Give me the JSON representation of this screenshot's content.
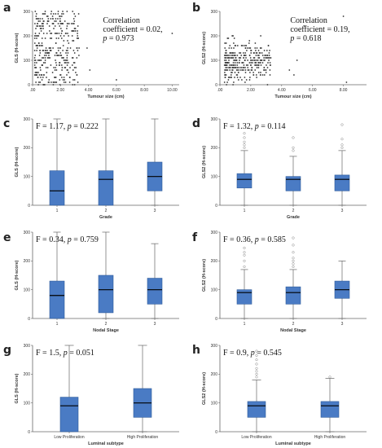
{
  "figure": {
    "colors": {
      "box": "#4a7bc4",
      "box_edge": "#2d5a9a",
      "axis": "#666666",
      "point": "#333333",
      "whisker": "#666666",
      "outlier": "#888888"
    }
  },
  "chart_data": [
    {
      "panel": "a",
      "type": "scatter",
      "xlabel": "Tumour size (cm)",
      "ylabel": "GLS (H-score)",
      "xlim": [
        0,
        10.5
      ],
      "ylim": [
        0,
        300
      ],
      "xticks": [
        ".00",
        "2.00",
        "4.00",
        "6.00",
        "8.00",
        "10.00"
      ],
      "annotation_lines": [
        "Correlation",
        "coefficient = 0.02,",
        "p = 0.973"
      ],
      "grid": false,
      "points_approx": "dense cluster for tumour size 0–3.5 cm spanning 0–300; isolated points near (6.0, 20) and (10.0, 210)"
    },
    {
      "panel": "b",
      "type": "scatter",
      "xlabel": "Tumour size (cm)",
      "ylabel": "GLS2 (H-score)",
      "xlim": [
        0,
        9.5
      ],
      "ylim": [
        0,
        300
      ],
      "xticks": [
        ".00",
        "2.00",
        "4.00",
        "6.00",
        "8.00"
      ],
      "annotation_lines": [
        "Correlation",
        "coefficient = 0.19,",
        "p = 0.618"
      ],
      "grid": false,
      "points_approx": "dense cluster for tumour size 0–3.5 cm, 0–200, concentrated around 100; isolated points near (5.5, 240) and (8.0, 280)"
    },
    {
      "panel": "c",
      "type": "box",
      "stat_text": "F = 1.17, p = 0.222",
      "xlabel": "Grade",
      "ylabel": "GLS (H-score)",
      "ylim": [
        0,
        300
      ],
      "yticks": [
        0,
        100,
        200,
        300
      ],
      "categories": [
        "1",
        "2",
        "3"
      ],
      "boxes": [
        {
          "min": 0,
          "q1": 0,
          "median": 50,
          "q3": 120,
          "max": 300,
          "outliers": []
        },
        {
          "min": 0,
          "q1": 0,
          "median": 90,
          "q3": 120,
          "max": 300,
          "outliers": []
        },
        {
          "min": 0,
          "q1": 50,
          "median": 100,
          "q3": 150,
          "max": 300,
          "outliers": []
        }
      ]
    },
    {
      "panel": "d",
      "type": "box",
      "stat_text": "F = 1.32, p = 0.114",
      "xlabel": "Grade",
      "ylabel": "GLS2 (H-score)",
      "ylim": [
        0,
        300
      ],
      "yticks": [
        0,
        100,
        200,
        300
      ],
      "categories": [
        "1",
        "2",
        "3"
      ],
      "boxes": [
        {
          "min": 0,
          "q1": 60,
          "median": 90,
          "q3": 110,
          "max": 190,
          "outliers": [
            200,
            210,
            220,
            235,
            250
          ]
        },
        {
          "min": 0,
          "q1": 50,
          "median": 90,
          "q3": 100,
          "max": 170,
          "outliers": [
            190,
            200,
            235
          ]
        },
        {
          "min": 0,
          "q1": 50,
          "median": 90,
          "q3": 105,
          "max": 190,
          "outliers": [
            200,
            210,
            230,
            280
          ]
        }
      ]
    },
    {
      "panel": "e",
      "type": "box",
      "stat_text": "F = 0.34, p = 0.759",
      "xlabel": "Nodal Stage",
      "ylabel": "GLS (H-score)",
      "ylim": [
        0,
        300
      ],
      "yticks": [
        0,
        100,
        200,
        300
      ],
      "categories": [
        "1",
        "2",
        "3"
      ],
      "boxes": [
        {
          "min": 0,
          "q1": 0,
          "median": 80,
          "q3": 130,
          "max": 300,
          "outliers": []
        },
        {
          "min": 0,
          "q1": 20,
          "median": 100,
          "q3": 150,
          "max": 300,
          "outliers": []
        },
        {
          "min": 0,
          "q1": 50,
          "median": 100,
          "q3": 140,
          "max": 260,
          "outliers": []
        }
      ]
    },
    {
      "panel": "f",
      "type": "box",
      "stat_text": "F = 0.36, p = 0.585",
      "xlabel": "Nodal Stage",
      "ylabel": "GLS2 (H-score)",
      "ylim": [
        0,
        300
      ],
      "yticks": [
        0,
        100,
        200,
        300
      ],
      "categories": [
        "1",
        "2",
        "3"
      ],
      "boxes": [
        {
          "min": 0,
          "q1": 50,
          "median": 90,
          "q3": 100,
          "max": 170,
          "outliers": [
            180,
            200,
            220,
            230,
            245
          ]
        },
        {
          "min": 0,
          "q1": 50,
          "median": 90,
          "q3": 110,
          "max": 170,
          "outliers": [
            180,
            190,
            200,
            210,
            230,
            255,
            280
          ]
        },
        {
          "min": 0,
          "q1": 70,
          "median": 100,
          "q3": 130,
          "max": 200,
          "outliers": []
        }
      ]
    },
    {
      "panel": "g",
      "type": "box",
      "stat_text": "F = 1.5, p = 0.051",
      "xlabel": "Luminal subtype",
      "ylabel": "GLS (H-score)",
      "ylim": [
        0,
        300
      ],
      "yticks": [
        0,
        100,
        200,
        300
      ],
      "categories": [
        "Low Proliferation",
        "High Proliferation"
      ],
      "boxes": [
        {
          "min": 0,
          "q1": 0,
          "median": 90,
          "q3": 120,
          "max": 300,
          "outliers": []
        },
        {
          "min": 0,
          "q1": 50,
          "median": 100,
          "q3": 150,
          "max": 300,
          "outliers": []
        }
      ]
    },
    {
      "panel": "h",
      "type": "box",
      "stat_text": "F = 0.9, p = 0.545",
      "xlabel": "Luminal subtype",
      "ylabel": "GLS2 (H-score)",
      "ylim": [
        0,
        300
      ],
      "yticks": [
        0,
        100,
        200,
        300
      ],
      "categories": [
        "Low Proliferation",
        "High Proliferation"
      ],
      "boxes": [
        {
          "min": 0,
          "q1": 50,
          "median": 90,
          "q3": 105,
          "max": 180,
          "outliers": [
            190,
            200,
            210,
            220,
            235,
            250,
            265,
            280
          ]
        },
        {
          "min": 0,
          "q1": 50,
          "median": 90,
          "q3": 105,
          "max": 185,
          "outliers": [
            190
          ]
        }
      ]
    }
  ]
}
